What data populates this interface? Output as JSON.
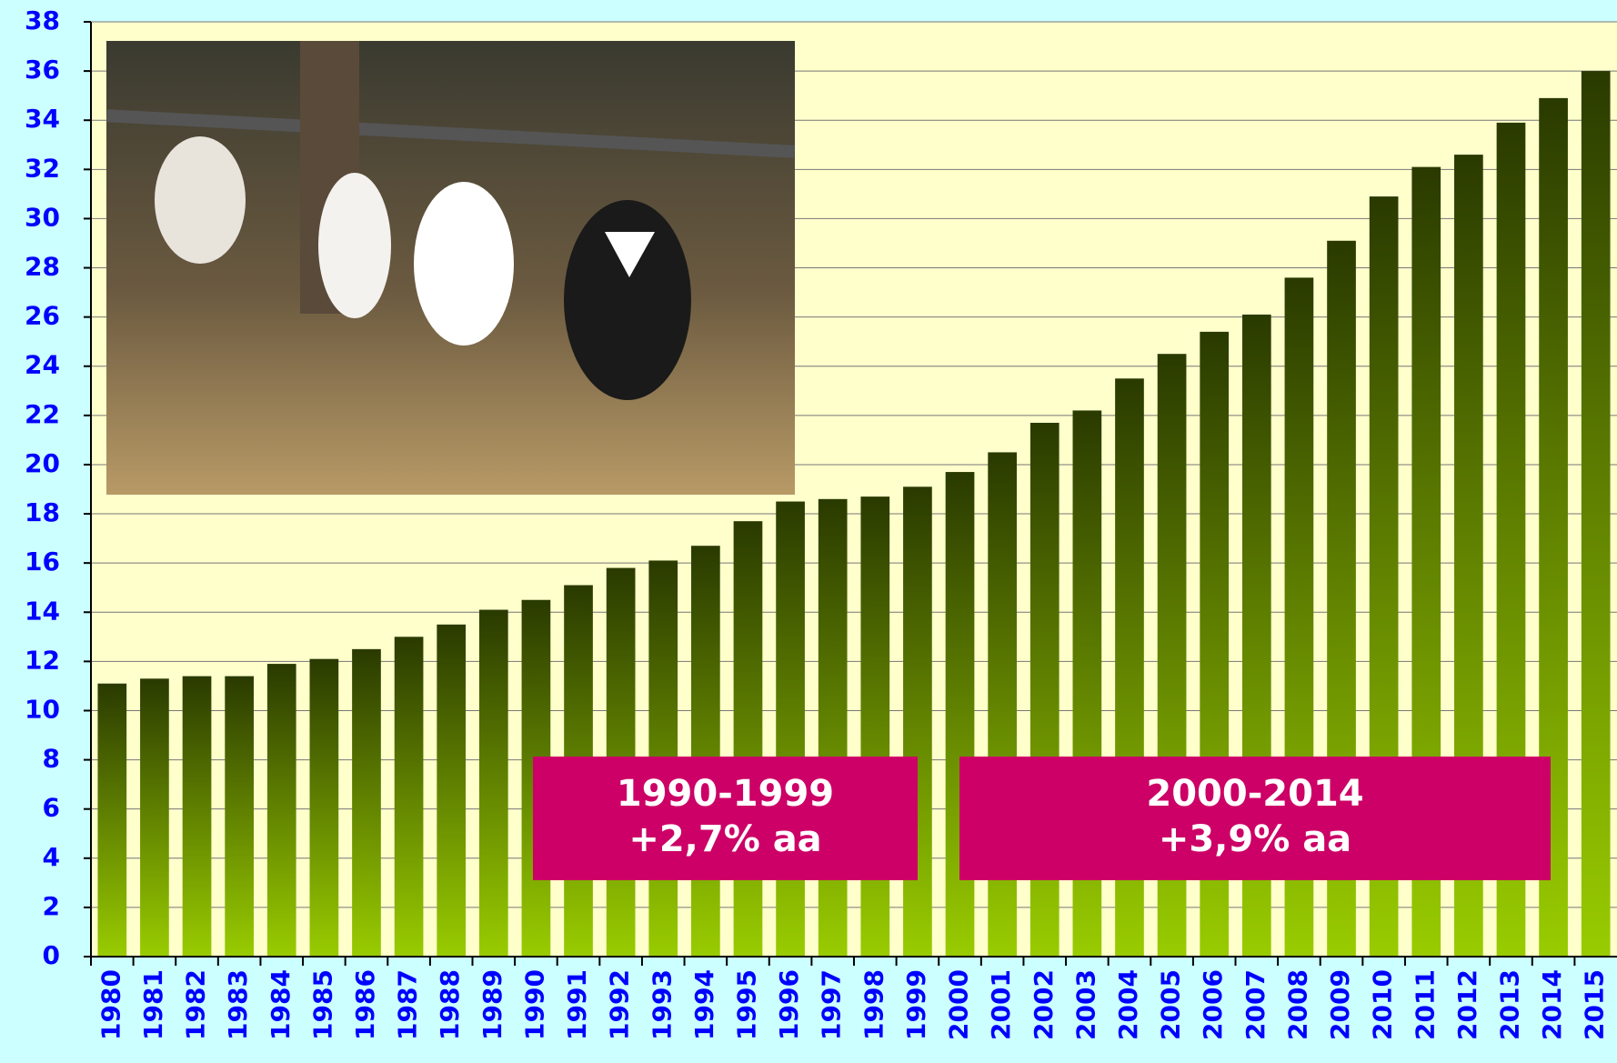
{
  "chart_data": {
    "type": "bar",
    "categories": [
      "1980",
      "1981",
      "1982",
      "1983",
      "1984",
      "1985",
      "1986",
      "1987",
      "1988",
      "1989",
      "1990",
      "1991",
      "1992",
      "1993",
      "1994",
      "1995",
      "1996",
      "1997",
      "1998",
      "1999",
      "2000",
      "2001",
      "2002",
      "2003",
      "2004",
      "2005",
      "2006",
      "2007",
      "2008",
      "2009",
      "2010",
      "2011",
      "2012",
      "2013",
      "2014",
      "2015"
    ],
    "values": [
      11.1,
      11.3,
      11.4,
      11.4,
      11.9,
      12.1,
      12.5,
      13.0,
      13.5,
      14.1,
      14.5,
      15.1,
      15.8,
      16.1,
      16.7,
      17.7,
      18.5,
      18.6,
      18.7,
      19.1,
      19.7,
      20.5,
      21.7,
      22.2,
      23.5,
      24.5,
      25.4,
      26.1,
      27.6,
      29.1,
      30.9,
      32.1,
      32.6,
      33.9,
      34.9,
      36.0
    ],
    "color": "#99cc00",
    "ylim": [
      0,
      38
    ],
    "yticks": [
      0,
      2,
      4,
      6,
      8,
      10,
      12,
      14,
      16,
      18,
      20,
      22,
      24,
      26,
      28,
      30,
      32,
      34,
      36,
      38
    ],
    "grid": true,
    "annotations": [
      {
        "lines": [
          "1990-1999",
          "+2,7% aa"
        ]
      },
      {
        "lines": [
          "2000-2014",
          "+3,9% aa"
        ]
      }
    ]
  }
}
